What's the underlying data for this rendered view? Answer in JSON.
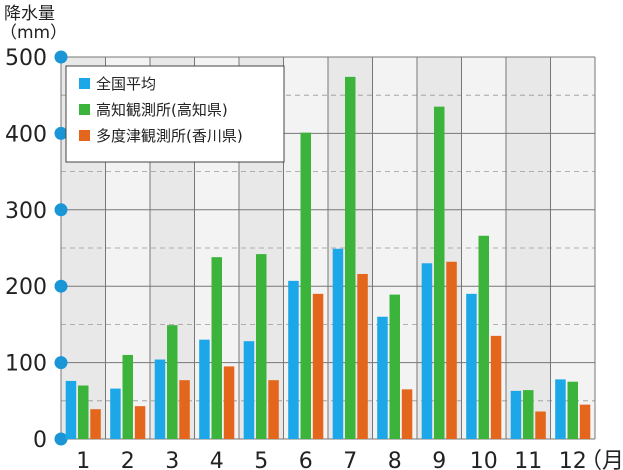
{
  "chart_data": {
    "type": "bar",
    "ylabel_line1": "降水量",
    "ylabel_line2": "（mm）",
    "x_unit": "（月）",
    "categories": [
      "1",
      "2",
      "3",
      "4",
      "5",
      "6",
      "7",
      "8",
      "9",
      "10",
      "11",
      "12"
    ],
    "ylim": [
      0,
      500
    ],
    "yticks": [
      0,
      100,
      200,
      300,
      400,
      500
    ],
    "grid": true,
    "legend_position": "top-left",
    "series": [
      {
        "name": "全国平均",
        "color": "#1ba7e8",
        "values": [
          76,
          66,
          104,
          130,
          128,
          207,
          249,
          160,
          230,
          190,
          63,
          78
        ]
      },
      {
        "name": "高知観測所(高知県)",
        "color": "#3cb43c",
        "values": [
          70,
          110,
          149,
          238,
          242,
          401,
          474,
          189,
          435,
          266,
          64,
          75
        ]
      },
      {
        "name": "多度津観測所(香川県)",
        "color": "#e3661c",
        "values": [
          39,
          43,
          77,
          95,
          77,
          190,
          216,
          65,
          232,
          135,
          36,
          45
        ]
      }
    ]
  }
}
